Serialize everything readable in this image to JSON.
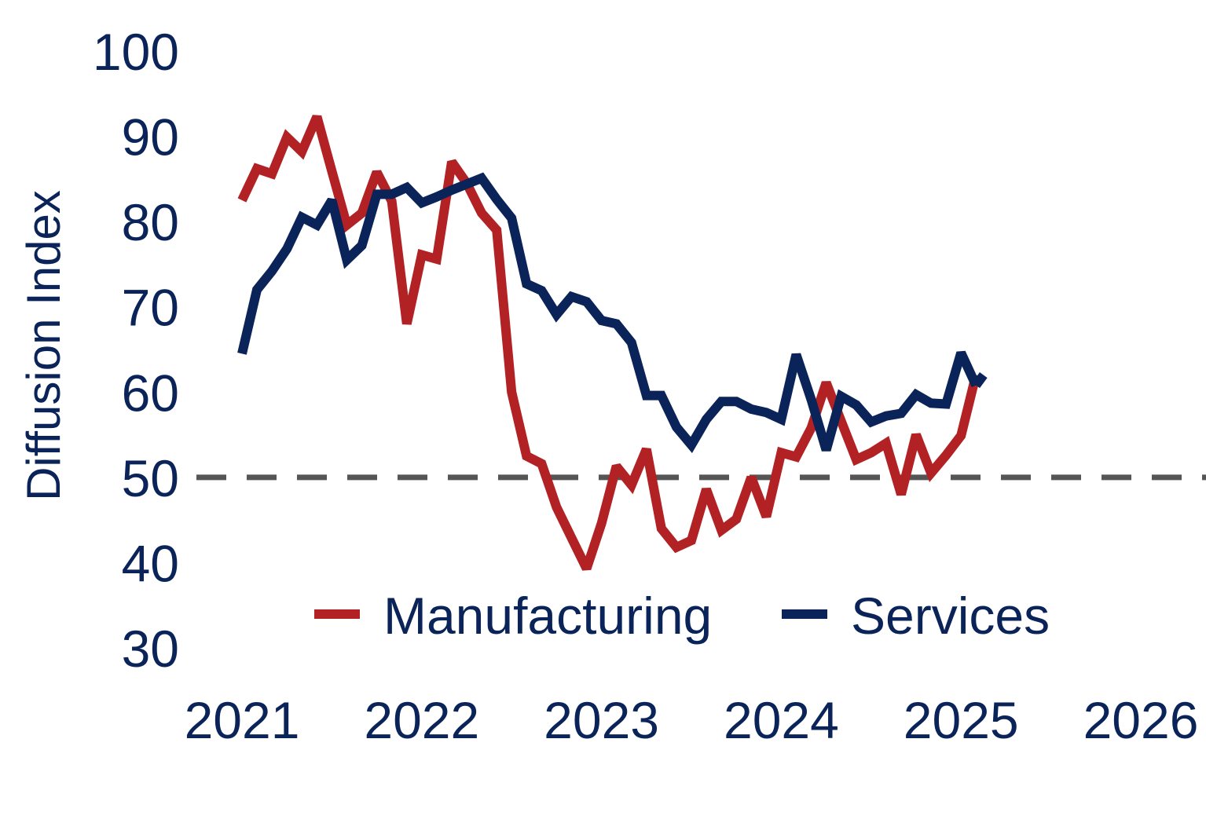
{
  "chart_data": {
    "type": "line",
    "title": "",
    "xlabel": "",
    "ylabel": "Diffusion Index",
    "ylim": [
      30,
      100
    ],
    "xlim": [
      2021,
      2026
    ],
    "y_ticks": [
      "100",
      "90",
      "80",
      "70",
      "60",
      "50",
      "40",
      "30"
    ],
    "x_ticks": [
      "2021",
      "2022",
      "2023",
      "2024",
      "2025",
      "2026"
    ],
    "reference_line": {
      "value": 50,
      "style": "dashed",
      "color": "#555555"
    },
    "legend_position": "bottom-center",
    "series": [
      {
        "name": "Manufacturing",
        "color": "#b22225",
        "x": [
          2021.0,
          2021.083,
          2021.167,
          2021.25,
          2021.333,
          2021.417,
          2021.5,
          2021.583,
          2021.667,
          2021.75,
          2021.833,
          2021.917,
          2022.0,
          2022.083,
          2022.167,
          2022.25,
          2022.333,
          2022.417,
          2022.5,
          2022.583,
          2022.667,
          2022.75,
          2022.833,
          2022.917,
          2023.0,
          2023.083,
          2023.167,
          2023.25,
          2023.333,
          2023.417,
          2023.5,
          2023.583,
          2023.667,
          2023.75,
          2023.833,
          2023.917,
          2024.0,
          2024.083,
          2024.167,
          2024.25,
          2024.333,
          2024.417,
          2024.5,
          2024.583,
          2024.667,
          2024.75,
          2024.833,
          2024.917,
          2025.0,
          2025.083
        ],
        "values": [
          82.5,
          86.2,
          85.6,
          89.9,
          88.2,
          92.3,
          85.9,
          79.6,
          81.0,
          85.8,
          82.4,
          68.0,
          76.1,
          75.6,
          87.0,
          84.5,
          81.0,
          79.0,
          60.0,
          52.5,
          51.6,
          46.5,
          42.9,
          39.3,
          44.6,
          51.3,
          49.1,
          53.3,
          44.0,
          41.8,
          42.6,
          48.6,
          43.8,
          45.1,
          50.0,
          45.4,
          52.9,
          52.4,
          55.8,
          61.1,
          56.6,
          52.1,
          52.9,
          54.0,
          48.0,
          55.0,
          50.5,
          52.6,
          54.9,
          62.0
        ]
      },
      {
        "name": "Services",
        "color": "#0a2358",
        "x": [
          2021.0,
          2021.083,
          2021.167,
          2021.25,
          2021.333,
          2021.417,
          2021.5,
          2021.583,
          2021.667,
          2021.75,
          2021.833,
          2021.917,
          2022.0,
          2022.083,
          2022.167,
          2022.25,
          2022.333,
          2022.417,
          2022.5,
          2022.583,
          2022.667,
          2022.75,
          2022.833,
          2022.917,
          2023.0,
          2023.083,
          2023.167,
          2023.25,
          2023.333,
          2023.417,
          2023.5,
          2023.583,
          2023.667,
          2023.75,
          2023.833,
          2023.917,
          2024.0,
          2024.083,
          2024.167,
          2024.25,
          2024.333,
          2024.417,
          2024.5,
          2024.583,
          2024.667,
          2024.75,
          2024.833,
          2024.917,
          2025.0,
          2025.083
        ],
        "values": [
          64.5,
          72.0,
          74.2,
          76.8,
          80.5,
          79.6,
          82.5,
          75.5,
          77.2,
          83.2,
          83.2,
          84.0,
          82.2,
          82.9,
          83.7,
          84.4,
          85.1,
          82.6,
          80.4,
          72.7,
          71.9,
          69.1,
          71.2,
          70.6,
          68.4,
          68.0,
          65.8,
          59.6,
          59.6,
          55.9,
          53.8,
          56.8,
          58.9,
          58.9,
          58.0,
          57.6,
          56.8,
          64.4,
          59.1,
          53.2,
          59.5,
          58.5,
          56.5,
          57.2,
          57.5,
          59.7,
          58.7,
          58.6,
          64.6,
          60.8
        ]
      },
      {
        "name": "Services",
        "color": "#0a2358",
        "x": [
          2025.083,
          2025.125
        ],
        "values": [
          60.8,
          62.0
        ],
        "legend": false
      }
    ]
  }
}
